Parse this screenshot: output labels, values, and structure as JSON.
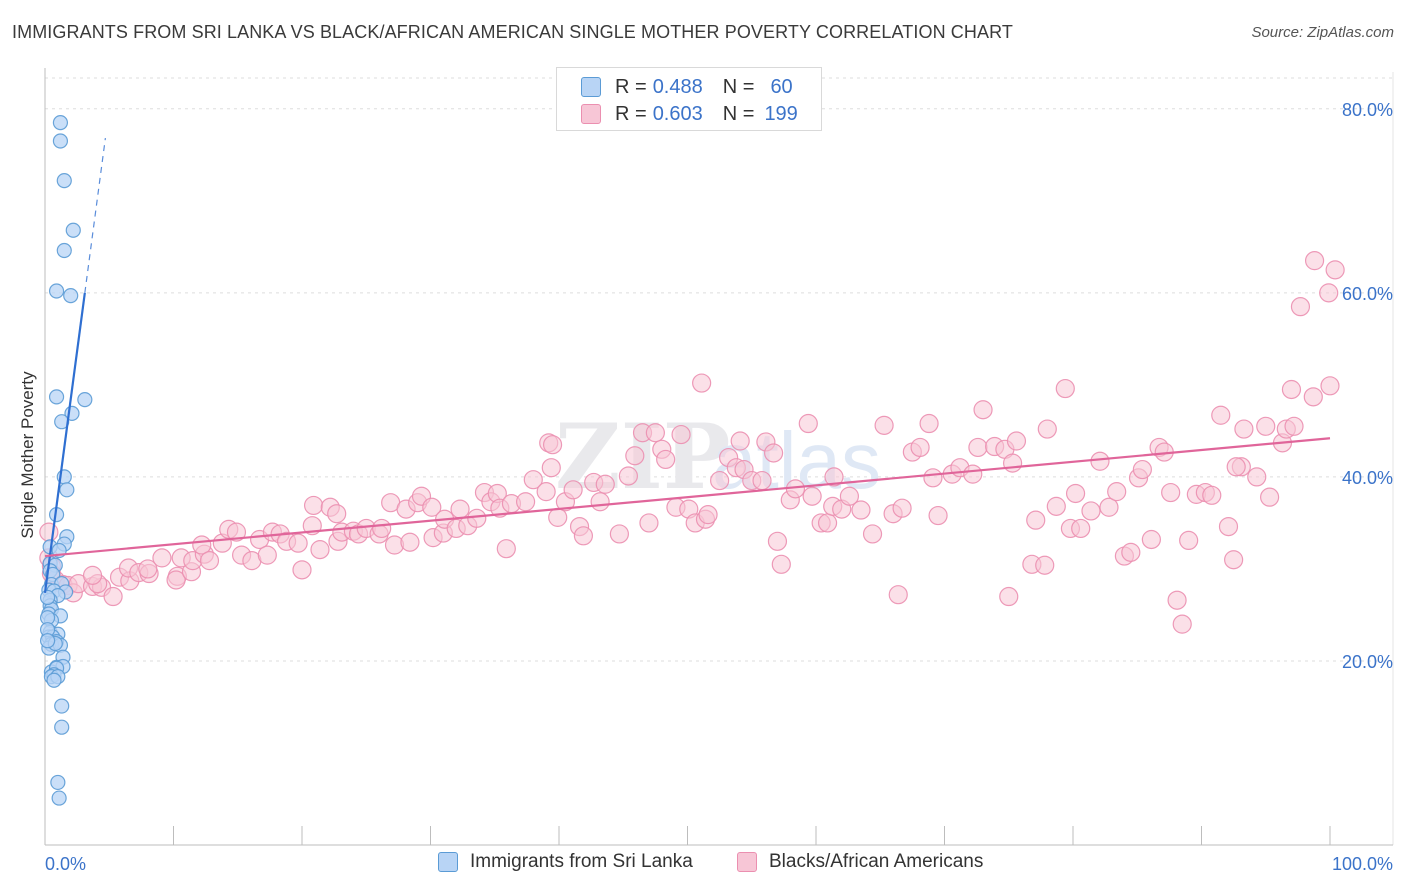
{
  "title": "IMMIGRANTS FROM SRI LANKA VS BLACK/AFRICAN AMERICAN SINGLE MOTHER POVERTY CORRELATION CHART",
  "source": "Source: ZipAtlas.com",
  "watermark": "ZIPatlas",
  "legend": {
    "series1": {
      "r_label": "R =",
      "r_value": "0.488",
      "n_label": "N =",
      "n_value": "60"
    },
    "series2": {
      "r_label": "R =",
      "r_value": "0.603",
      "n_label": "N =",
      "n_value": "199"
    }
  },
  "colors": {
    "blue_fill": "#b8d4f5",
    "blue_stroke": "#5b9bd5",
    "blue_line": "#2f6fd1",
    "pink_fill": "#f7c6d6",
    "pink_stroke": "#eb8fb0",
    "pink_line": "#e0659a",
    "axis_text": "#3b73c9",
    "grid": "#dddddd"
  },
  "chart_data": {
    "type": "scatter",
    "title": "IMMIGRANTS FROM SRI LANKA VS BLACK/AFRICAN AMERICAN SINGLE MOTHER POVERTY CORRELATION CHART",
    "xlabel": "",
    "ylabel": "Single Mother Poverty",
    "xlim": [
      0,
      100
    ],
    "ylim": [
      0,
      84
    ],
    "x_tick_labels": [
      "0.0%",
      "100.0%"
    ],
    "y_ticks": [
      20,
      40,
      60,
      80
    ],
    "y_tick_labels": [
      "20.0%",
      "40.0%",
      "60.0%",
      "80.0%"
    ],
    "grid": true,
    "legend_position": "top-center",
    "series": [
      {
        "name": "Immigrants from Sri Lanka",
        "color": "blue",
        "trend": {
          "x0": 0.0,
          "y0": 27.4,
          "x1": 3.1,
          "y1": 60.0,
          "dash_to_x": 4.7
        },
        "points": [
          [
            1.2,
            78.5
          ],
          [
            1.2,
            76.5
          ],
          [
            1.5,
            72.2
          ],
          [
            2.2,
            66.8
          ],
          [
            1.5,
            64.6
          ],
          [
            0.9,
            60.2
          ],
          [
            2.0,
            59.7
          ],
          [
            0.9,
            48.7
          ],
          [
            3.1,
            48.4
          ],
          [
            2.1,
            46.9
          ],
          [
            1.3,
            46.0
          ],
          [
            1.5,
            40.0
          ],
          [
            1.7,
            38.6
          ],
          [
            0.9,
            35.9
          ],
          [
            1.7,
            33.5
          ],
          [
            1.5,
            32.7
          ],
          [
            0.4,
            32.4
          ],
          [
            1.1,
            32.0
          ],
          [
            0.4,
            30.6
          ],
          [
            0.8,
            30.4
          ],
          [
            0.4,
            29.8
          ],
          [
            0.6,
            29.4
          ],
          [
            0.5,
            28.3
          ],
          [
            1.3,
            28.4
          ],
          [
            0.3,
            27.7
          ],
          [
            0.7,
            27.6
          ],
          [
            1.6,
            27.5
          ],
          [
            1.0,
            27.1
          ],
          [
            0.4,
            26.6
          ],
          [
            0.4,
            26.0
          ],
          [
            0.5,
            25.6
          ],
          [
            0.3,
            25.1
          ],
          [
            1.2,
            24.9
          ],
          [
            0.5,
            24.4
          ],
          [
            0.4,
            23.1
          ],
          [
            0.3,
            22.6
          ],
          [
            1.0,
            22.9
          ],
          [
            0.6,
            22.6
          ],
          [
            0.9,
            22.1
          ],
          [
            0.5,
            21.8
          ],
          [
            0.3,
            21.4
          ],
          [
            1.2,
            21.7
          ],
          [
            0.8,
            21.9
          ],
          [
            1.4,
            20.4
          ],
          [
            0.9,
            19.3
          ],
          [
            1.4,
            19.4
          ],
          [
            0.5,
            18.8
          ],
          [
            0.9,
            19.2
          ],
          [
            0.7,
            18.5
          ],
          [
            0.5,
            18.3
          ],
          [
            1.0,
            18.3
          ],
          [
            0.7,
            17.9
          ],
          [
            1.3,
            15.1
          ],
          [
            1.3,
            12.8
          ],
          [
            1.0,
            6.8
          ],
          [
            1.1,
            5.1
          ],
          [
            0.2,
            26.9
          ],
          [
            0.2,
            24.7
          ],
          [
            0.2,
            23.4
          ],
          [
            0.2,
            22.2
          ]
        ]
      },
      {
        "name": "Blacks/African Americans",
        "color": "pink",
        "trend": {
          "x0": 0.0,
          "y0": 31.4,
          "x1": 100.0,
          "y1": 44.2
        },
        "points": [
          [
            0.3,
            34.0
          ],
          [
            0.3,
            31.2
          ],
          [
            0.5,
            30.3
          ],
          [
            0.5,
            29.5
          ],
          [
            0.8,
            28.8
          ],
          [
            1.4,
            28.3
          ],
          [
            1.8,
            28.2
          ],
          [
            2.2,
            27.4
          ],
          [
            2.6,
            28.4
          ],
          [
            3.7,
            28.1
          ],
          [
            4.4,
            28.0
          ],
          [
            5.3,
            27.0
          ],
          [
            4.1,
            28.4
          ],
          [
            3.7,
            29.3
          ],
          [
            5.8,
            29.1
          ],
          [
            6.6,
            28.7
          ],
          [
            6.5,
            30.1
          ],
          [
            7.3,
            29.6
          ],
          [
            8.1,
            29.5
          ],
          [
            8.0,
            30.0
          ],
          [
            9.1,
            31.2
          ],
          [
            10.3,
            29.2
          ],
          [
            10.2,
            28.8
          ],
          [
            11.4,
            29.7
          ],
          [
            10.6,
            31.2
          ],
          [
            11.5,
            30.9
          ],
          [
            12.4,
            31.6
          ],
          [
            12.2,
            32.6
          ],
          [
            12.8,
            30.9
          ],
          [
            13.8,
            32.8
          ],
          [
            14.3,
            34.3
          ],
          [
            15.3,
            31.5
          ],
          [
            14.9,
            34.0
          ],
          [
            16.1,
            30.9
          ],
          [
            16.7,
            33.2
          ],
          [
            17.3,
            31.5
          ],
          [
            17.7,
            34.0
          ],
          [
            18.3,
            33.8
          ],
          [
            18.8,
            33.0
          ],
          [
            19.7,
            32.8
          ],
          [
            20.0,
            29.9
          ],
          [
            20.8,
            34.7
          ],
          [
            20.9,
            36.9
          ],
          [
            21.4,
            32.1
          ],
          [
            22.2,
            36.7
          ],
          [
            22.7,
            36.0
          ],
          [
            22.8,
            33.0
          ],
          [
            23.1,
            34.0
          ],
          [
            24.0,
            34.1
          ],
          [
            24.4,
            33.8
          ],
          [
            25.0,
            34.4
          ],
          [
            26.0,
            33.8
          ],
          [
            26.2,
            34.4
          ],
          [
            26.9,
            37.2
          ],
          [
            27.2,
            32.6
          ],
          [
            28.1,
            36.5
          ],
          [
            28.4,
            32.9
          ],
          [
            29.0,
            37.2
          ],
          [
            29.3,
            37.9
          ],
          [
            30.1,
            36.7
          ],
          [
            30.2,
            33.4
          ],
          [
            31.0,
            33.9
          ],
          [
            31.1,
            35.4
          ],
          [
            32.0,
            34.4
          ],
          [
            32.3,
            36.5
          ],
          [
            32.9,
            34.7
          ],
          [
            33.6,
            35.5
          ],
          [
            34.2,
            38.3
          ],
          [
            34.7,
            37.3
          ],
          [
            35.2,
            38.2
          ],
          [
            35.4,
            36.6
          ],
          [
            35.9,
            32.2
          ],
          [
            36.3,
            37.1
          ],
          [
            37.4,
            37.3
          ],
          [
            38.0,
            39.7
          ],
          [
            39.0,
            38.4
          ],
          [
            39.2,
            43.7
          ],
          [
            39.5,
            43.5
          ],
          [
            39.4,
            41.0
          ],
          [
            39.9,
            35.6
          ],
          [
            40.5,
            37.3
          ],
          [
            41.1,
            38.6
          ],
          [
            41.6,
            34.6
          ],
          [
            41.9,
            33.6
          ],
          [
            42.7,
            39.4
          ],
          [
            43.2,
            37.3
          ],
          [
            43.6,
            39.2
          ],
          [
            44.7,
            33.8
          ],
          [
            45.4,
            40.1
          ],
          [
            45.9,
            42.3
          ],
          [
            46.5,
            44.8
          ],
          [
            47.0,
            35.0
          ],
          [
            47.5,
            44.8
          ],
          [
            48.0,
            43.0
          ],
          [
            48.3,
            41.9
          ],
          [
            49.1,
            36.7
          ],
          [
            49.5,
            44.6
          ],
          [
            50.1,
            36.5
          ],
          [
            50.6,
            35.0
          ],
          [
            51.4,
            35.4
          ],
          [
            51.6,
            35.9
          ],
          [
            51.1,
            50.2
          ],
          [
            52.5,
            39.6
          ],
          [
            53.2,
            42.1
          ],
          [
            53.8,
            41.0
          ],
          [
            54.1,
            43.9
          ],
          [
            54.4,
            40.8
          ],
          [
            55.0,
            39.6
          ],
          [
            55.8,
            39.6
          ],
          [
            56.1,
            43.8
          ],
          [
            56.7,
            42.6
          ],
          [
            57.0,
            33.0
          ],
          [
            57.3,
            30.5
          ],
          [
            58.0,
            37.5
          ],
          [
            58.4,
            38.7
          ],
          [
            59.4,
            45.8
          ],
          [
            59.7,
            37.9
          ],
          [
            60.4,
            35.0
          ],
          [
            60.9,
            35.0
          ],
          [
            61.4,
            40.0
          ],
          [
            61.3,
            36.8
          ],
          [
            62.0,
            36.5
          ],
          [
            62.6,
            37.9
          ],
          [
            63.5,
            36.4
          ],
          [
            64.4,
            33.8
          ],
          [
            65.3,
            45.6
          ],
          [
            66.0,
            36.0
          ],
          [
            66.4,
            27.2
          ],
          [
            66.7,
            36.6
          ],
          [
            67.5,
            42.7
          ],
          [
            68.1,
            43.2
          ],
          [
            68.8,
            45.8
          ],
          [
            69.1,
            39.9
          ],
          [
            69.5,
            35.8
          ],
          [
            70.6,
            40.3
          ],
          [
            71.2,
            41.0
          ],
          [
            72.2,
            40.3
          ],
          [
            72.6,
            43.2
          ],
          [
            73.0,
            47.3
          ],
          [
            73.9,
            43.3
          ],
          [
            74.7,
            43.0
          ],
          [
            75.0,
            27.0
          ],
          [
            75.3,
            41.5
          ],
          [
            75.6,
            43.9
          ],
          [
            76.8,
            30.5
          ],
          [
            77.1,
            35.3
          ],
          [
            77.8,
            30.4
          ],
          [
            78.0,
            45.2
          ],
          [
            78.7,
            36.8
          ],
          [
            79.4,
            49.6
          ],
          [
            79.8,
            34.4
          ],
          [
            80.2,
            38.2
          ],
          [
            80.6,
            34.4
          ],
          [
            81.4,
            36.3
          ],
          [
            82.1,
            41.7
          ],
          [
            82.8,
            36.7
          ],
          [
            83.4,
            38.4
          ],
          [
            84.0,
            31.4
          ],
          [
            84.5,
            31.8
          ],
          [
            85.1,
            39.9
          ],
          [
            85.4,
            40.8
          ],
          [
            86.1,
            33.2
          ],
          [
            86.7,
            43.2
          ],
          [
            87.1,
            42.7
          ],
          [
            87.6,
            38.3
          ],
          [
            88.1,
            26.6
          ],
          [
            88.5,
            24.0
          ],
          [
            89.0,
            33.1
          ],
          [
            89.6,
            38.1
          ],
          [
            90.3,
            38.3
          ],
          [
            90.8,
            38.0
          ],
          [
            91.5,
            46.7
          ],
          [
            92.1,
            34.6
          ],
          [
            92.5,
            31.0
          ],
          [
            93.1,
            41.1
          ],
          [
            93.3,
            45.2
          ],
          [
            94.3,
            40.0
          ],
          [
            95.0,
            45.5
          ],
          [
            95.3,
            37.8
          ],
          [
            96.3,
            43.7
          ],
          [
            96.6,
            45.2
          ],
          [
            97.0,
            49.5
          ],
          [
            97.7,
            58.5
          ],
          [
            98.7,
            48.7
          ],
          [
            98.8,
            63.5
          ],
          [
            99.9,
            60.0
          ],
          [
            100.0,
            49.9
          ],
          [
            100.4,
            62.5
          ],
          [
            97.2,
            45.5
          ],
          [
            92.7,
            41.1
          ]
        ]
      }
    ]
  },
  "bottom_legend": {
    "series1_label": "Immigrants from Sri Lanka",
    "series2_label": "Blacks/African Americans"
  },
  "axis": {
    "x_left_label": "0.0%",
    "x_right_label": "100.0%"
  }
}
